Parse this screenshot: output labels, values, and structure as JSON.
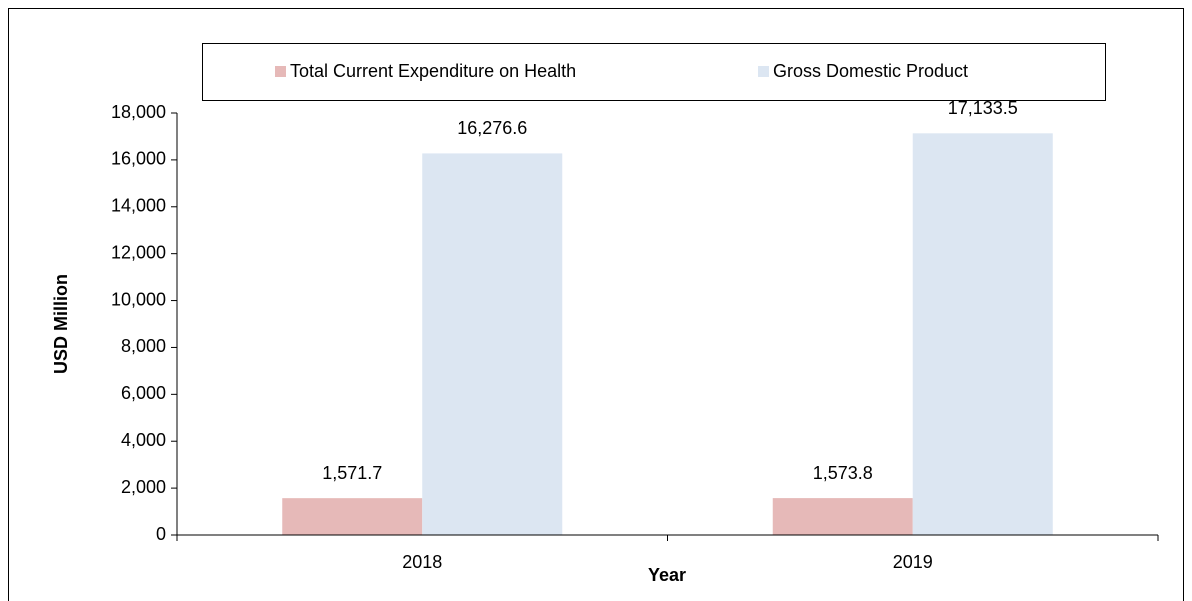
{
  "chart_data": {
    "type": "bar",
    "x_label": "Year",
    "y_label": "USD Million",
    "categories": [
      "2018",
      "2019"
    ],
    "series": [
      {
        "name": "Total Current Expenditure on Health",
        "color": "#e6b9b8",
        "values": [
          1571.7,
          1573.8
        ],
        "value_labels": [
          "1,571.7",
          "1,573.8"
        ]
      },
      {
        "name": "Gross Domestic Product",
        "color": "#dce6f2",
        "values": [
          16276.6,
          17133.5
        ],
        "value_labels": [
          "16,276.6",
          "17,133.5"
        ]
      }
    ],
    "ylim": [
      0,
      18000
    ],
    "yticks": [
      0,
      {
        "value": 2000,
        "label": "2,000"
      },
      {
        "value": 4000,
        "label": "4,000"
      },
      {
        "value": 6000,
        "label": "6,000"
      },
      {
        "value": 8000,
        "label": "8,000"
      },
      {
        "value": 10000,
        "label": "10,000"
      },
      {
        "value": 12000,
        "label": "12,000"
      },
      {
        "value": 14000,
        "label": "14,000"
      },
      {
        "value": 16000,
        "label": "16,000"
      },
      {
        "value": 18000,
        "label": "18,000"
      }
    ],
    "legend": "top"
  }
}
